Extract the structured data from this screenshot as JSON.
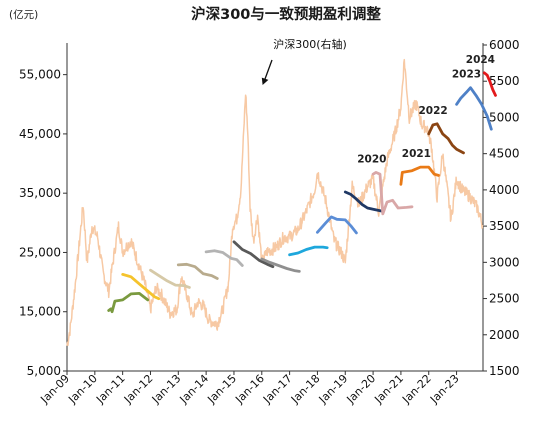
{
  "chart_data": {
    "type": "line",
    "title": "沪深300与一致预期盈利调整",
    "y_unit_left": "(亿元)",
    "ylim_left": [
      5000,
      60000
    ],
    "ylim_right": [
      1500,
      6000
    ],
    "yticks_left": [
      "5,000",
      "15,000",
      "25,000",
      "35,000",
      "45,000",
      "55,000"
    ],
    "yticks_right": [
      "1500",
      "2000",
      "2500",
      "3000",
      "3500",
      "4000",
      "4500",
      "5000",
      "5500",
      "6000"
    ],
    "x_ticks": [
      "Jan-09",
      "Jan-10",
      "Jan-11",
      "Jan-12",
      "Jan-13",
      "Jan-14",
      "Jan-15",
      "Jan-16",
      "Jan-17",
      "Jan-18",
      "Jan-19",
      "Jan-20",
      "Jan-21",
      "Jan-22",
      "Jan-23"
    ],
    "xlim": [
      2009.0,
      2023.95
    ],
    "annotation": "沪深300(右轴)",
    "annotation_x": 2015.45,
    "index_series": {
      "name": "沪深300(右轴)",
      "axis": "right",
      "color": "#f7c9a4",
      "points": [
        [
          2009.0,
          1850
        ],
        [
          2009.12,
          2100
        ],
        [
          2009.3,
          2700
        ],
        [
          2009.58,
          3800
        ],
        [
          2009.72,
          3000
        ],
        [
          2009.9,
          3500
        ],
        [
          2010.1,
          3350
        ],
        [
          2010.3,
          2850
        ],
        [
          2010.5,
          2600
        ],
        [
          2010.65,
          3000
        ],
        [
          2010.85,
          3500
        ],
        [
          2011.0,
          3150
        ],
        [
          2011.3,
          3300
        ],
        [
          2011.55,
          3000
        ],
        [
          2011.8,
          2700
        ],
        [
          2012.0,
          2350
        ],
        [
          2012.2,
          2650
        ],
        [
          2012.4,
          2550
        ],
        [
          2012.7,
          2300
        ],
        [
          2012.95,
          2350
        ],
        [
          2013.1,
          2800
        ],
        [
          2013.35,
          2500
        ],
        [
          2013.5,
          2250
        ],
        [
          2013.7,
          2450
        ],
        [
          2013.9,
          2400
        ],
        [
          2014.1,
          2200
        ],
        [
          2014.4,
          2150
        ],
        [
          2014.6,
          2350
        ],
        [
          2014.8,
          2700
        ],
        [
          2014.95,
          3500
        ],
        [
          2015.1,
          3600
        ],
        [
          2015.25,
          4000
        ],
        [
          2015.42,
          5350
        ],
        [
          2015.5,
          4750
        ],
        [
          2015.58,
          3750
        ],
        [
          2015.7,
          3300
        ],
        [
          2015.85,
          3650
        ],
        [
          2016.0,
          3000
        ],
        [
          2016.2,
          3150
        ],
        [
          2016.5,
          3200
        ],
        [
          2016.8,
          3350
        ],
        [
          2017.0,
          3350
        ],
        [
          2017.3,
          3450
        ],
        [
          2017.6,
          3700
        ],
        [
          2017.9,
          4000
        ],
        [
          2018.0,
          4250
        ],
        [
          2018.3,
          3850
        ],
        [
          2018.6,
          3300
        ],
        [
          2018.9,
          3100
        ],
        [
          2019.0,
          3000
        ],
        [
          2019.25,
          4050
        ],
        [
          2019.5,
          3800
        ],
        [
          2019.8,
          4050
        ],
        [
          2020.0,
          4150
        ],
        [
          2020.2,
          3700
        ],
        [
          2020.5,
          4400
        ],
        [
          2020.8,
          4800
        ],
        [
          2021.0,
          5150
        ],
        [
          2021.12,
          5800
        ],
        [
          2021.3,
          5000
        ],
        [
          2021.55,
          5200
        ],
        [
          2021.75,
          4900
        ],
        [
          2021.95,
          4850
        ],
        [
          2022.1,
          4600
        ],
        [
          2022.3,
          3900
        ],
        [
          2022.5,
          4500
        ],
        [
          2022.8,
          3600
        ],
        [
          2023.0,
          4150
        ],
        [
          2023.2,
          4000
        ],
        [
          2023.5,
          3900
        ],
        [
          2023.75,
          3750
        ],
        [
          2023.95,
          3500
        ]
      ]
    },
    "series": [
      {
        "axis": "left",
        "color": "#7a9a3f",
        "points": [
          [
            2010.5,
            15200
          ],
          [
            2010.58,
            15500
          ],
          [
            2010.62,
            15000
          ],
          [
            2010.72,
            16800
          ],
          [
            2011.0,
            17000
          ],
          [
            2011.3,
            18000
          ],
          [
            2011.6,
            18100
          ],
          [
            2011.9,
            17000
          ]
        ]
      },
      {
        "axis": "left",
        "color": "#f5c32c",
        "points": [
          [
            2011.0,
            21300
          ],
          [
            2011.3,
            20900
          ],
          [
            2011.6,
            19700
          ],
          [
            2011.9,
            18500
          ],
          [
            2012.15,
            17500
          ],
          [
            2012.3,
            17200
          ]
        ]
      },
      {
        "axis": "left",
        "color": "#d6c9a7",
        "points": [
          [
            2012.0,
            22000
          ],
          [
            2012.3,
            21100
          ],
          [
            2012.6,
            20200
          ],
          [
            2012.9,
            19500
          ],
          [
            2013.2,
            19400
          ],
          [
            2013.4,
            19100
          ]
        ]
      },
      {
        "axis": "left",
        "color": "#b8ab8d",
        "points": [
          [
            2013.0,
            22900
          ],
          [
            2013.3,
            23000
          ],
          [
            2013.6,
            22600
          ],
          [
            2013.9,
            21400
          ],
          [
            2014.2,
            21100
          ],
          [
            2014.4,
            20600
          ]
        ]
      },
      {
        "axis": "left",
        "color": "#b3b3b3",
        "points": [
          [
            2014.0,
            25100
          ],
          [
            2014.3,
            25300
          ],
          [
            2014.6,
            25000
          ],
          [
            2014.9,
            24000
          ],
          [
            2015.1,
            23800
          ],
          [
            2015.3,
            22800
          ]
        ]
      },
      {
        "axis": "left",
        "color": "#595959",
        "points": [
          [
            2015.0,
            26800
          ],
          [
            2015.3,
            25500
          ],
          [
            2015.6,
            24800
          ],
          [
            2015.9,
            23700
          ],
          [
            2016.2,
            23000
          ],
          [
            2016.4,
            22600
          ]
        ]
      },
      {
        "axis": "left",
        "color": "#8f8f8f",
        "points": [
          [
            2016.0,
            23900
          ],
          [
            2016.3,
            23300
          ],
          [
            2016.6,
            22800
          ],
          [
            2016.9,
            22300
          ],
          [
            2017.2,
            21900
          ],
          [
            2017.35,
            21800
          ]
        ]
      },
      {
        "axis": "left",
        "color": "#1ea7dc",
        "points": [
          [
            2017.0,
            24600
          ],
          [
            2017.3,
            24900
          ],
          [
            2017.6,
            25500
          ],
          [
            2017.9,
            25900
          ],
          [
            2018.2,
            25900
          ],
          [
            2018.35,
            25800
          ]
        ]
      },
      {
        "axis": "left",
        "color": "#5b8dd6",
        "points": [
          [
            2018.0,
            28400
          ],
          [
            2018.3,
            30000
          ],
          [
            2018.5,
            31000
          ],
          [
            2018.7,
            30600
          ],
          [
            2019.0,
            30500
          ],
          [
            2019.2,
            29500
          ],
          [
            2019.4,
            28300
          ]
        ]
      },
      {
        "axis": "left",
        "color": "#1f3864",
        "points": [
          [
            2019.0,
            35200
          ],
          [
            2019.2,
            34800
          ],
          [
            2019.4,
            34000
          ],
          [
            2019.6,
            33100
          ],
          [
            2019.8,
            32500
          ],
          [
            2020.0,
            32300
          ],
          [
            2020.3,
            32000
          ]
        ]
      },
      {
        "name": "2020",
        "axis": "left",
        "color": "#d9a7a7",
        "points": [
          [
            2020.0,
            38200
          ],
          [
            2020.1,
            38500
          ],
          [
            2020.25,
            38200
          ],
          [
            2020.35,
            31500
          ],
          [
            2020.5,
            33500
          ],
          [
            2020.7,
            33800
          ],
          [
            2020.9,
            32500
          ],
          [
            2021.2,
            32600
          ],
          [
            2021.4,
            32700
          ]
        ]
      },
      {
        "name": "2021",
        "axis": "left",
        "color": "#e97a16",
        "points": [
          [
            2021.0,
            36500
          ],
          [
            2021.05,
            38500
          ],
          [
            2021.4,
            38800
          ],
          [
            2021.7,
            39400
          ],
          [
            2022.0,
            39400
          ],
          [
            2022.2,
            38200
          ],
          [
            2022.35,
            38000
          ]
        ]
      },
      {
        "name": "2022",
        "axis": "left",
        "color": "#8b4513",
        "points": [
          [
            2022.0,
            45000
          ],
          [
            2022.15,
            46500
          ],
          [
            2022.3,
            46700
          ],
          [
            2022.5,
            45000
          ],
          [
            2022.7,
            44200
          ],
          [
            2022.85,
            43100
          ],
          [
            2023.0,
            42400
          ],
          [
            2023.25,
            41800
          ]
        ]
      },
      {
        "name": "2023",
        "axis": "left",
        "color": "#4f81c7",
        "points": [
          [
            2023.0,
            50000
          ],
          [
            2023.15,
            51000
          ],
          [
            2023.35,
            52000
          ],
          [
            2023.5,
            52800
          ],
          [
            2023.7,
            51500
          ],
          [
            2023.9,
            50000
          ],
          [
            2024.1,
            48000
          ],
          [
            2024.25,
            45800
          ]
        ]
      },
      {
        "name": "2024",
        "axis": "left",
        "color": "#e31a1c",
        "points": [
          [
            2024.0,
            55300
          ],
          [
            2024.1,
            54900
          ],
          [
            2024.2,
            53800
          ],
          [
            2024.3,
            52500
          ],
          [
            2024.4,
            51500
          ]
        ]
      }
    ]
  }
}
